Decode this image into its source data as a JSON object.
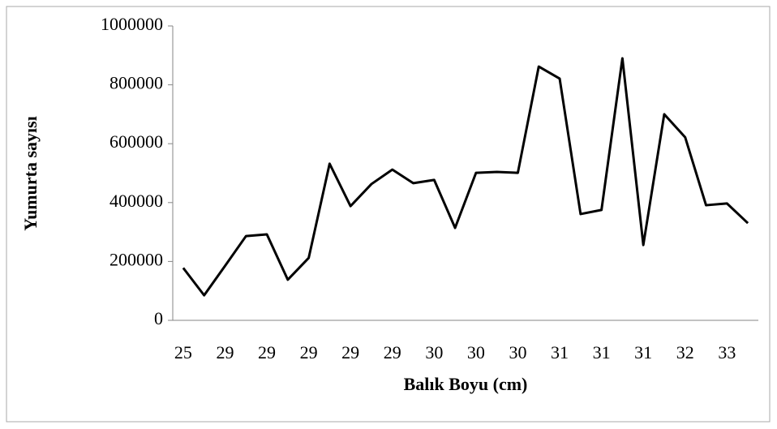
{
  "chart_data": {
    "type": "line",
    "x_label": "Balık Boyu (cm)",
    "y_label": "Yumurta sayısı",
    "categories": [
      "25",
      null,
      "29",
      null,
      "29",
      null,
      "29",
      null,
      "29",
      null,
      "29",
      null,
      "30",
      null,
      "30",
      null,
      "30",
      null,
      "31",
      null,
      "31",
      null,
      "31",
      null,
      "32",
      null,
      "33",
      null
    ],
    "values": [
      178000,
      85000,
      185000,
      286000,
      292000,
      138000,
      212000,
      532000,
      388000,
      463000,
      512000,
      466000,
      477000,
      314000,
      501000,
      504000,
      501000,
      862000,
      821000,
      361000,
      375000,
      890000,
      256000,
      700000,
      622000,
      391000,
      397000,
      330000
    ],
    "color": "#000000",
    "ylim": [
      0,
      1000000
    ],
    "yticks": [
      0,
      200000,
      400000,
      600000,
      800000,
      1000000
    ],
    "grid": false
  }
}
